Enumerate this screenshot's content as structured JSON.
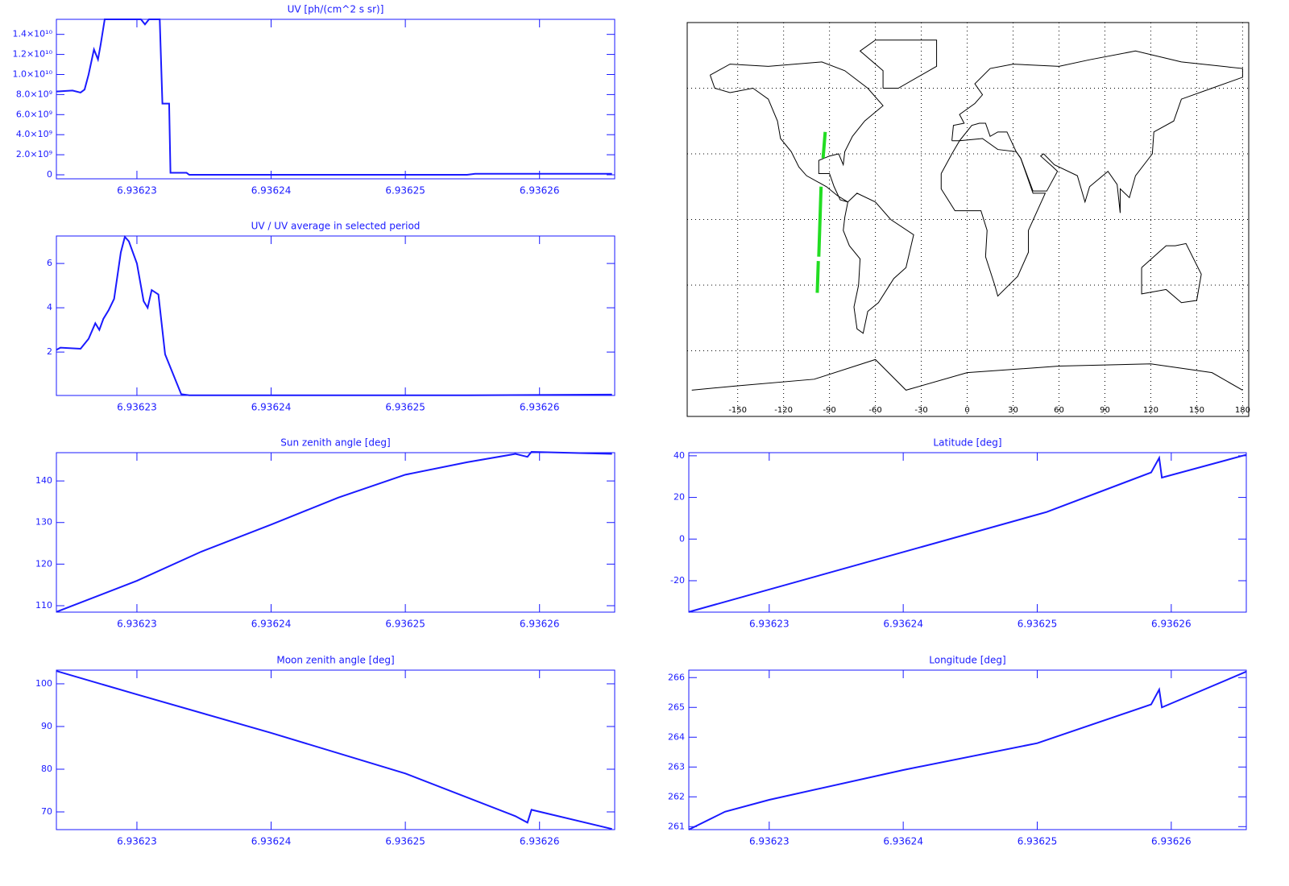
{
  "chart_data": [
    {
      "type": "line",
      "title": "UV [ph/(cm^2 s sr)]",
      "color": "#1a1aff",
      "x": [
        6.936224,
        6.9362252,
        6.9362258,
        6.9362261,
        6.9362264,
        6.9362268,
        6.9362271,
        6.9362273,
        6.9362276,
        6.9362303,
        6.9362306,
        6.9362309,
        6.9362317,
        6.9362319,
        6.9362324,
        6.9362325,
        6.9362337,
        6.9362339,
        6.9362546,
        6.9362552,
        6.9362654
      ],
      "values": [
        8300000000.0,
        8400000000.0,
        8200000000.0,
        8500000000.0,
        10000000000.0,
        12500000000.0,
        11500000000.0,
        13000000000.0,
        15500000000.0,
        15500000000.0,
        15000000000.0,
        15500000000.0,
        15500000000.0,
        7100000000.0,
        7100000000.0,
        200000000.0,
        200000000.0,
        0,
        0,
        100000000.0,
        100000000.0
      ],
      "xlim": [
        6.936224,
        6.9362656
      ],
      "xticks": [
        6.93623,
        6.93624,
        6.93625,
        6.93626
      ],
      "ylim": [
        -400000000.0,
        15500000000.0
      ],
      "yticks": [
        0,
        {
          "value": 2000000000.0,
          "label": "2.0×10⁹"
        },
        {
          "value": 4000000000.0,
          "label": "4.0×10⁹"
        },
        {
          "value": 6000000000.0,
          "label": "6.0×10⁹"
        },
        {
          "value": 8000000000.0,
          "label": "8.0×10⁹"
        },
        {
          "value": 10000000000.0,
          "label": "1.0×10¹⁰"
        },
        {
          "value": 12000000000.0,
          "label": "1.2×10¹⁰"
        },
        {
          "value": 14000000000.0,
          "label": "1.4×10¹⁰"
        }
      ]
    },
    {
      "type": "line",
      "title": "UV / UV average in selected period",
      "color": "#1a1aff",
      "x": [
        6.936224,
        6.9362243,
        6.9362258,
        6.9362264,
        6.9362269,
        6.9362272,
        6.9362275,
        6.9362279,
        6.9362283,
        6.9362288,
        6.9362291,
        6.9362294,
        6.93623,
        6.9362305,
        6.9362308,
        6.9362311,
        6.9362316,
        6.9362321,
        6.9362333,
        6.9362339,
        6.9362546,
        6.9362654
      ],
      "values": [
        2.1,
        2.2,
        2.15,
        2.6,
        3.3,
        3.0,
        3.5,
        3.9,
        4.4,
        6.5,
        7.2,
        7.0,
        6.0,
        4.3,
        4.0,
        4.8,
        4.6,
        1.9,
        0.1,
        0.05,
        0.05,
        0.08
      ],
      "xlim": [
        6.936224,
        6.9362656
      ],
      "xticks": [
        6.93623,
        6.93624,
        6.93625,
        6.93626
      ],
      "ylim": [
        0.04,
        7.24
      ],
      "yticks": [
        2,
        4,
        6
      ]
    },
    {
      "type": "map",
      "color": "#22dd22",
      "x": [
        -92.8,
        -94.2,
        null,
        -95.5,
        -97,
        null,
        -97.3,
        -98
      ],
      "values": [
        40,
        28,
        null,
        15,
        -17,
        null,
        -19,
        -33.5
      ],
      "xlim": [
        -183,
        184
      ],
      "xticks": [
        -150,
        -120,
        -90,
        -60,
        -30,
        0,
        30,
        60,
        90,
        120,
        150,
        180
      ],
      "ylim": [
        -90,
        90
      ],
      "ygrid": [
        -60,
        -30,
        0,
        30,
        60
      ]
    },
    {
      "type": "line",
      "title": "Sun zenith angle [deg]",
      "color": "#1a1aff",
      "x": [
        6.936224,
        6.93623,
        6.9362348,
        6.93624,
        6.936245,
        6.93625,
        6.9362546,
        6.9362582,
        6.9362591,
        6.9362594,
        6.9362654
      ],
      "values": [
        108.5,
        116,
        123,
        129.5,
        136,
        141.5,
        144.5,
        146.5,
        145.8,
        147,
        146.5
      ],
      "xlim": [
        6.936224,
        6.9362656
      ],
      "xticks": [
        6.93623,
        6.93624,
        6.93625,
        6.93626
      ],
      "ylim": [
        108.45,
        146.8
      ],
      "yticks": [
        110,
        120,
        130,
        140
      ]
    },
    {
      "type": "line",
      "title": "Latitude [deg]",
      "color": "#1a1aff",
      "x": [
        6.936224,
        6.9362507,
        6.9362585,
        6.9362591,
        6.9362593,
        6.9362656
      ],
      "values": [
        -35,
        13,
        32,
        39,
        29.5,
        40.5
      ],
      "xlim": [
        6.936224,
        6.9362656
      ],
      "xticks": [
        6.93623,
        6.93624,
        6.93625,
        6.93626
      ],
      "ylim": [
        -35.1,
        41.5
      ],
      "yticks": [
        -20,
        0,
        20,
        40
      ]
    },
    {
      "type": "line",
      "title": "Moon zenith angle [deg]",
      "color": "#1a1aff",
      "x": [
        6.936224,
        6.93623,
        6.93624,
        6.93625,
        6.9362582,
        6.9362591,
        6.9362594,
        6.9362654
      ],
      "values": [
        103,
        97.5,
        88.5,
        79,
        69,
        67.5,
        70.5,
        66
      ],
      "xlim": [
        6.936224,
        6.9362656
      ],
      "xticks": [
        6.93623,
        6.93624,
        6.93625,
        6.93626
      ],
      "ylim": [
        65.85,
        103.2
      ],
      "yticks": [
        70,
        80,
        90,
        100
      ]
    },
    {
      "type": "line",
      "title": "Longitude [deg]",
      "color": "#1a1aff",
      "x": [
        6.936224,
        6.9362267,
        6.93623,
        6.93624,
        6.93625,
        6.9362585,
        6.9362591,
        6.9362593,
        6.9362656
      ],
      "values": [
        260.9,
        261.5,
        261.9,
        262.9,
        263.8,
        265.1,
        265.6,
        265.0,
        266.2
      ],
      "xlim": [
        6.936224,
        6.9362656
      ],
      "xticks": [
        6.93623,
        6.93624,
        6.93625,
        6.93626
      ],
      "ylim": [
        260.9,
        266.25
      ],
      "yticks": [
        261,
        262,
        263,
        264,
        265,
        266
      ]
    }
  ]
}
